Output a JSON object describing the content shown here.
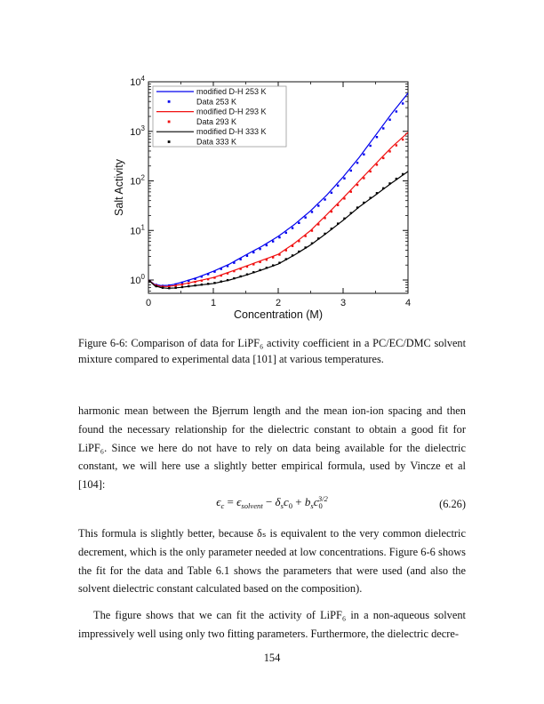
{
  "page": {
    "number": "154"
  },
  "figure": {
    "caption": "Figure 6-6:  Comparison of data for LiPF₆ activity coefficient in a PC/EC/DMC solvent mixture compared to experimental data [101] at various temperatures."
  },
  "chart_data": {
    "type": "line",
    "title": "",
    "xlabel": "Concentration (M)",
    "ylabel": "Salt Activity",
    "x_scale": "linear",
    "y_scale": "log",
    "xlim": [
      0,
      4
    ],
    "ylim": [
      0.54,
      10000
    ],
    "x_ticks": [
      0,
      1,
      2,
      3,
      4
    ],
    "x_minor_step": 0.5,
    "y_tick_exponents": [
      0,
      1,
      2,
      3,
      4
    ],
    "grid": false,
    "legend": {
      "position": "top-left",
      "entries": [
        "modified D-H 253 K",
        "Data 253 K",
        "modified D-H 293 K",
        "Data 293 K",
        "modified D-H 333 K",
        "Data 333 K"
      ]
    },
    "series": [
      {
        "name": "modified D-H 253 K",
        "type": "line",
        "color": "#0000ee",
        "x": [
          0,
          0.1,
          0.2,
          0.3,
          0.4,
          0.5,
          0.75,
          1.0,
          1.25,
          1.5,
          1.75,
          2.0,
          2.25,
          2.5,
          2.75,
          3.0,
          3.25,
          3.5,
          3.75,
          4.0
        ],
        "y": [
          1.0,
          0.81,
          0.77,
          0.78,
          0.82,
          0.89,
          1.12,
          1.5,
          2.1,
          3.2,
          4.8,
          7.6,
          13.2,
          25,
          52,
          120,
          300,
          830,
          2300,
          5900
        ]
      },
      {
        "name": "Data 253 K",
        "type": "scatter",
        "color": "#0000ee",
        "source_line": "modified D-H 253 K",
        "x_start": 0.02,
        "x_step": 0.1,
        "x_end": 3.95,
        "log10_offset_at_max": -0.08
      },
      {
        "name": "modified D-H 293 K",
        "type": "line",
        "color": "#f01010",
        "x": [
          0,
          0.1,
          0.2,
          0.3,
          0.4,
          0.5,
          0.75,
          1.0,
          1.25,
          1.5,
          1.75,
          2.0,
          2.25,
          2.5,
          2.75,
          3.0,
          3.25,
          3.5,
          3.75,
          4.0
        ],
        "y": [
          1.0,
          0.79,
          0.74,
          0.74,
          0.77,
          0.81,
          0.95,
          1.12,
          1.45,
          1.9,
          2.5,
          3.3,
          5.5,
          10,
          21,
          45,
          100,
          220,
          480,
          950
        ]
      },
      {
        "name": "Data 293 K",
        "type": "scatter",
        "color": "#f01010",
        "source_line": "modified D-H 293 K",
        "x_start": 0.02,
        "x_step": 0.1,
        "x_end": 3.95,
        "log10_offset_at_max": -0.05
      },
      {
        "name": "modified D-H 333 K",
        "type": "line",
        "color": "#000000",
        "x": [
          0,
          0.1,
          0.2,
          0.3,
          0.4,
          0.5,
          0.75,
          1.0,
          1.25,
          1.5,
          1.75,
          2.0,
          2.25,
          2.5,
          2.75,
          3.0,
          3.25,
          3.5,
          3.75,
          4.0
        ],
        "y": [
          1.0,
          0.76,
          0.7,
          0.68,
          0.69,
          0.71,
          0.78,
          0.85,
          1.0,
          1.25,
          1.6,
          2.1,
          3.2,
          5.1,
          8.9,
          16,
          30,
          52,
          91,
          155
        ]
      },
      {
        "name": "Data 333 K",
        "type": "scatter",
        "color": "#000000",
        "source_line": "modified D-H 333 K",
        "x_start": 0.02,
        "x_step": 0.1,
        "x_end": 3.95,
        "log10_offset_at_max": 0.02
      }
    ]
  },
  "body": {
    "paragraphs": [
      "harmonic mean between the Bjerrum length and the mean ion-ion spacing and then found the necessary relationship for the dielectric constant to obtain a good fit for LiPF₆.  Since we here do not have to rely on data being available for the dielectric constant, we will here use a slightly better empirical formula, used by Vincze et al [104]:",
      "This formula is slightly better, because δₛ is equivalent to the very common dielectric decrement, which is the only parameter needed at low concentrations.  Figure 6-6 shows the fit for the data and Table 6.1 shows the parameters that were used (and also the solvent dielectric constant calculated based on the composition).",
      "The figure shows that we can fit the activity of LiPF₆ in a non-aqueous solvent impressively well using only two fitting parameters.  Furthermore, the dielectric decre-"
    ],
    "equation": {
      "number": "(6.26)",
      "parts": [
        {
          "t": "ϵ",
          "italic": true
        },
        {
          "t": "c",
          "kind": "sub",
          "italic": true
        },
        {
          "t": " = "
        },
        {
          "t": "ϵ",
          "italic": true
        },
        {
          "t": "solvent",
          "kind": "sub",
          "italic": true
        },
        {
          "t": " − "
        },
        {
          "t": "δ",
          "italic": true
        },
        {
          "t": "s",
          "kind": "sub",
          "italic": true
        },
        {
          "t": "c",
          "italic": true
        },
        {
          "t": "0",
          "kind": "sub"
        },
        {
          "t": " + "
        },
        {
          "t": "b",
          "italic": true
        },
        {
          "t": "s",
          "kind": "sub",
          "italic": true
        },
        {
          "t": "c",
          "italic": true
        },
        {
          "t": "0",
          "kind": "sub"
        },
        {
          "t": "3/2",
          "kind": "supstack",
          "italic": true
        }
      ]
    }
  }
}
